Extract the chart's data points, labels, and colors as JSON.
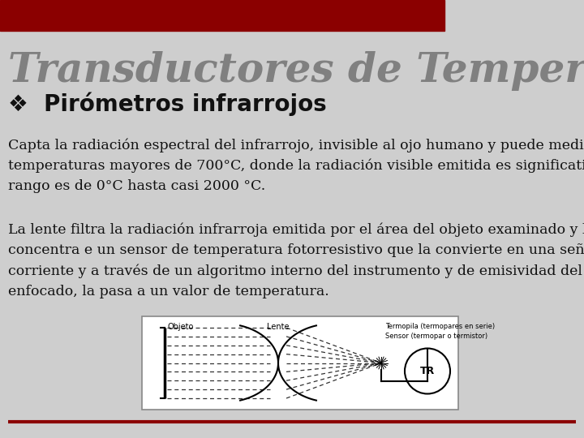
{
  "title": "Transductores de Temperatura",
  "subtitle": "Pirómetros infrarrojos",
  "bullet_char": "❖",
  "paragraph1": "Capta la radiación espectral del infrarrojo, invisible al ojo humano y puede medir\ntemperaturas mayores de 700°C, donde la radiación visible emitida es significativo el\nrango es de 0°C hasta casi 2000 °C.",
  "paragraph2": "La lente filtra la radiación infrarroja emitida por el área del objeto examinado y la\nconcentra e un sensor de temperatura fotorresistivo que la convierte en una señal de\ncorriente y a través de un algoritmo interno del instrumento y de emisividad del cuerpo\nenfocado, la pasa a un valor de temperatura.",
  "bg_color": "#cecece",
  "header_bar_color": "#8b0000",
  "title_color": "#808080",
  "subtitle_color": "#111111",
  "body_text_color": "#111111",
  "bottom_line_color": "#8b0000",
  "title_fontsize": 36,
  "subtitle_fontsize": 20,
  "body_fontsize": 12.5
}
